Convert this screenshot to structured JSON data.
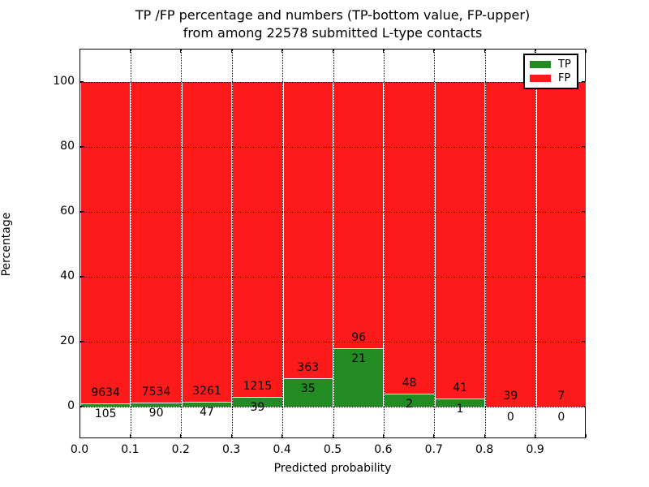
{
  "chart_data": {
    "type": "bar",
    "variant": "stacked-percentage-histogram",
    "title_line1": "TP /FP percentage and numbers (TP-bottom value, FP-upper)",
    "title_line2": "from among 22578 submitted L-type contacts",
    "xlabel": "Predicted probability",
    "ylabel": "Percentage",
    "total_submitted_contacts": "22578",
    "xlim": [
      0.0,
      1.0
    ],
    "ylim": [
      -10,
      110
    ],
    "bin_width": 0.1,
    "bin_starts": [
      0.0,
      0.1,
      0.2,
      0.3,
      0.4,
      0.5,
      0.6,
      0.7,
      0.8,
      0.9
    ],
    "x_tick_labels": [
      "0.0",
      "0.1",
      "0.2",
      "0.3",
      "0.4",
      "0.5",
      "0.6",
      "0.7",
      "0.8",
      "0.9"
    ],
    "y_ticks": [
      0,
      20,
      40,
      60,
      80,
      100
    ],
    "series": [
      {
        "name": "TP",
        "color": "#228b22",
        "counts": [
          105,
          90,
          47,
          39,
          35,
          21,
          2,
          1,
          0,
          0
        ]
      },
      {
        "name": "FP",
        "color": "#fc1a1a",
        "counts": [
          9634,
          7534,
          3261,
          1215,
          363,
          96,
          48,
          41,
          39,
          7
        ]
      }
    ],
    "tp_percent": [
      1.08,
      1.18,
      1.42,
      3.11,
      8.79,
      17.95,
      4.0,
      2.38,
      0.0,
      0.0
    ],
    "legend": {
      "position": "upper right",
      "entries": [
        {
          "label": "TP",
          "color": "#228b22"
        },
        {
          "label": "FP",
          "color": "#fc1a1a"
        }
      ]
    },
    "grid": {
      "linestyle": "dotted",
      "color": "#000000"
    },
    "bar_edge_color": "#ffffff",
    "background": "#ffffff"
  }
}
